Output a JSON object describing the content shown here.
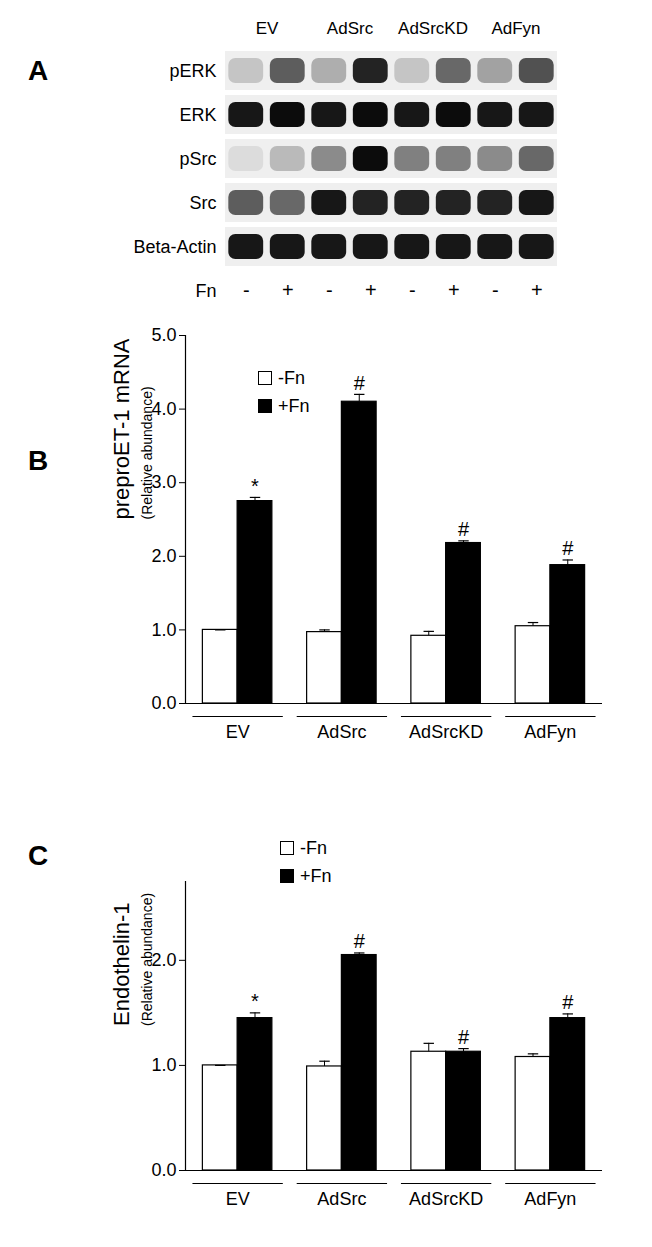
{
  "blot": {
    "panel": "A",
    "groups": [
      "EV",
      "AdSrc",
      "AdSrcKD",
      "AdFyn"
    ],
    "treatment_label": "Fn",
    "treatment": [
      "-",
      "+",
      "-",
      "+",
      "-",
      "+",
      "-",
      "+"
    ],
    "intensity_range": [
      0,
      1
    ],
    "rows": [
      {
        "name": "pERK",
        "intensity": [
          0.15,
          0.6,
          0.25,
          0.85,
          0.15,
          0.55,
          0.3,
          0.65
        ]
      },
      {
        "name": "ERK",
        "intensity": [
          0.9,
          0.95,
          0.9,
          0.95,
          0.9,
          0.95,
          0.9,
          0.9
        ]
      },
      {
        "name": "pSrc",
        "intensity": [
          0.05,
          0.2,
          0.4,
          0.95,
          0.45,
          0.45,
          0.4,
          0.55
        ]
      },
      {
        "name": "Src",
        "intensity": [
          0.6,
          0.55,
          0.9,
          0.85,
          0.85,
          0.85,
          0.85,
          0.9
        ]
      },
      {
        "name": "Beta-Actin",
        "intensity": [
          0.9,
          0.9,
          0.9,
          0.9,
          0.9,
          0.9,
          0.9,
          0.9
        ]
      }
    ]
  },
  "chart_data": [
    {
      "panel": "B",
      "type": "bar",
      "y_label": "preproET-1 mRNA",
      "y_sublabel": "(Relative abundance)",
      "categories": [
        "EV",
        "AdSrc",
        "AdSrcKD",
        "AdFyn"
      ],
      "series": [
        {
          "name": "-Fn",
          "color": "#ffffff",
          "values": [
            1.0,
            0.97,
            0.92,
            1.05
          ],
          "errors": [
            0.0,
            0.03,
            0.06,
            0.05
          ],
          "annotations": [
            null,
            null,
            null,
            null
          ]
        },
        {
          "name": "+Fn",
          "color": "#000000",
          "values": [
            2.75,
            4.1,
            2.18,
            1.88
          ],
          "errors": [
            0.05,
            0.1,
            0.03,
            0.07
          ],
          "annotations": [
            "*",
            "#",
            "#",
            "#"
          ]
        }
      ],
      "ylim": [
        0,
        5
      ],
      "yticks": [
        0,
        1,
        2,
        3,
        4,
        5
      ],
      "legend": "top-left"
    },
    {
      "panel": "C",
      "type": "bar",
      "y_label": "Endothelin-1",
      "y_sublabel": "(Relative abundance)",
      "categories": [
        "EV",
        "AdSrc",
        "AdSrcKD",
        "AdFyn"
      ],
      "series": [
        {
          "name": "-Fn",
          "color": "#ffffff",
          "values": [
            1.0,
            0.99,
            1.13,
            1.08
          ],
          "errors": [
            0.0,
            0.05,
            0.08,
            0.03
          ],
          "annotations": [
            null,
            null,
            null,
            null
          ]
        },
        {
          "name": "+Fn",
          "color": "#000000",
          "values": [
            1.45,
            2.05,
            1.13,
            1.45
          ],
          "errors": [
            0.05,
            0.02,
            0.03,
            0.04
          ],
          "annotations": [
            "*",
            "#",
            "#",
            "#"
          ]
        }
      ],
      "ylim": [
        0,
        2.75
      ],
      "yticks": [
        0,
        1,
        2
      ],
      "legend": "top-left"
    }
  ]
}
